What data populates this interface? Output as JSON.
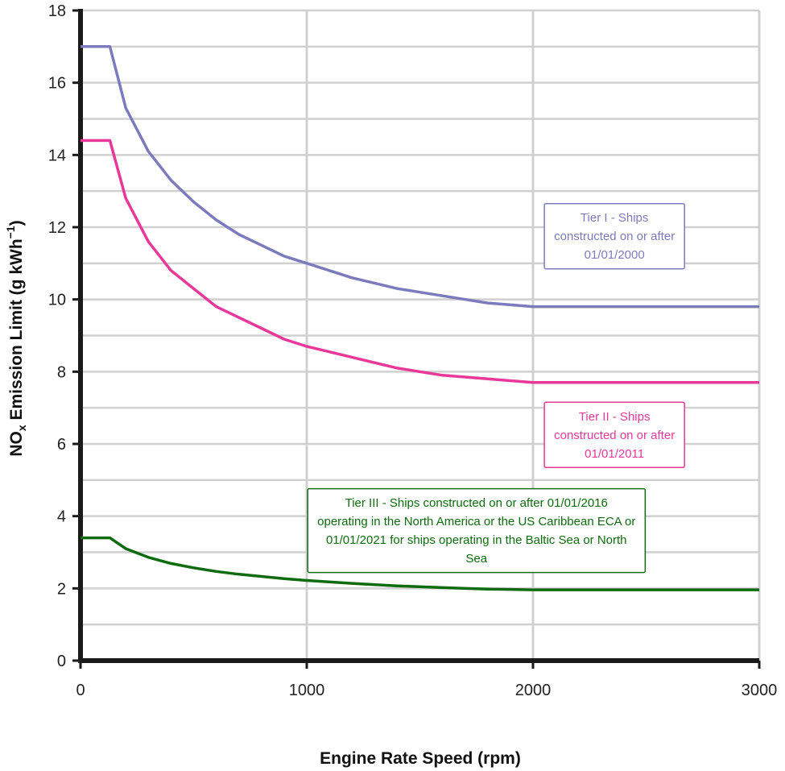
{
  "chart_data": {
    "type": "line",
    "title": "",
    "xlabel": "Engine Rate Speed (rpm)",
    "ylabel": {
      "main": "NO",
      "sub": "x",
      "rest": " Emission Limit (g kWh",
      "sup": "−1",
      "close": ")"
    },
    "xlim": [
      0,
      3000
    ],
    "ylim": [
      0,
      18
    ],
    "x_ticks": [
      0,
      1000,
      2000,
      3000
    ],
    "y_ticks": [
      0,
      2,
      4,
      6,
      8,
      10,
      12,
      14,
      16,
      18
    ],
    "grid": {
      "x_major_step": 1000,
      "y_major_step": 1
    },
    "series": [
      {
        "tier": "I",
        "color": "#7b7bbd",
        "points": [
          [
            0,
            17.0
          ],
          [
            130,
            17.0
          ],
          [
            200,
            15.3
          ],
          [
            300,
            14.1
          ],
          [
            400,
            13.3
          ],
          [
            500,
            12.7
          ],
          [
            600,
            12.2
          ],
          [
            700,
            11.8
          ],
          [
            800,
            11.5
          ],
          [
            900,
            11.2
          ],
          [
            1000,
            11.0
          ],
          [
            1200,
            10.6
          ],
          [
            1400,
            10.3
          ],
          [
            1600,
            10.1
          ],
          [
            1800,
            9.9
          ],
          [
            2000,
            9.8
          ],
          [
            3000,
            9.8
          ]
        ]
      },
      {
        "tier": "II",
        "color": "#e8389a",
        "points": [
          [
            0,
            14.4
          ],
          [
            130,
            14.4
          ],
          [
            200,
            12.8
          ],
          [
            300,
            11.6
          ],
          [
            400,
            10.8
          ],
          [
            500,
            10.3
          ],
          [
            600,
            9.8
          ],
          [
            700,
            9.5
          ],
          [
            800,
            9.2
          ],
          [
            900,
            8.9
          ],
          [
            1000,
            8.7
          ],
          [
            1200,
            8.4
          ],
          [
            1400,
            8.1
          ],
          [
            1600,
            7.9
          ],
          [
            1800,
            7.8
          ],
          [
            2000,
            7.7
          ],
          [
            3000,
            7.7
          ]
        ]
      },
      {
        "tier": "III",
        "color": "#0f6b0f",
        "points": [
          [
            0,
            3.4
          ],
          [
            130,
            3.4
          ],
          [
            200,
            3.1
          ],
          [
            300,
            2.86
          ],
          [
            400,
            2.69
          ],
          [
            500,
            2.57
          ],
          [
            600,
            2.47
          ],
          [
            700,
            2.39
          ],
          [
            800,
            2.33
          ],
          [
            900,
            2.27
          ],
          [
            1000,
            2.22
          ],
          [
            1200,
            2.14
          ],
          [
            1400,
            2.07
          ],
          [
            1600,
            2.02
          ],
          [
            1800,
            1.98
          ],
          [
            2000,
            1.96
          ],
          [
            3000,
            1.96
          ]
        ]
      }
    ],
    "annotations": [
      {
        "color": "#7b7bbd",
        "lines": [
          "Tier I - Ships",
          "constructed on or after",
          "01/01/2000"
        ],
        "anchor": [
          2360,
          11.75
        ]
      },
      {
        "color": "#e8389a",
        "lines": [
          "Tier II - Ships",
          "constructed on or after",
          "01/01/2011"
        ],
        "anchor": [
          2360,
          6.25
        ]
      },
      {
        "color": "#0f6b0f",
        "lines": [
          "Tier III - Ships constructed on or after 01/01/2016",
          "operating in the North America or the US Caribbean ECA or",
          "01/01/2021 for ships operating in the Baltic Sea or North",
          "Sea"
        ],
        "anchor": [
          1750,
          3.6
        ]
      }
    ]
  }
}
